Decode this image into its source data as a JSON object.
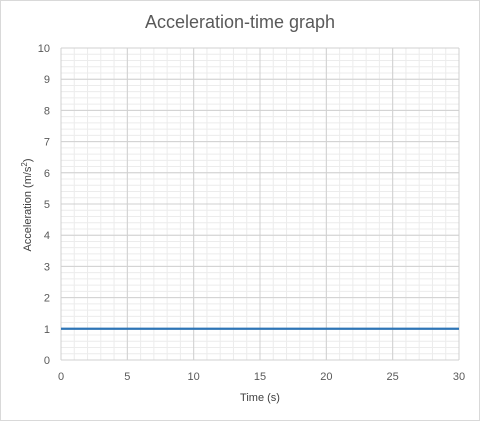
{
  "chart_data": {
    "type": "line",
    "title": "Acceleration-time graph",
    "xlabel": "Time (s)",
    "ylabel_main": "Acceleration (m/s",
    "ylabel_sup": "2",
    "ylabel_close": ")",
    "xlim": [
      0,
      30
    ],
    "ylim": [
      0,
      10
    ],
    "x_ticks": [
      0,
      5,
      10,
      15,
      20,
      25,
      30
    ],
    "y_ticks": [
      0,
      1,
      2,
      3,
      4,
      5,
      6,
      7,
      8,
      9,
      10
    ],
    "grid": true,
    "series": [
      {
        "x": [
          0,
          30
        ],
        "y": [
          1,
          1
        ],
        "color": "#2e75b6"
      }
    ]
  }
}
